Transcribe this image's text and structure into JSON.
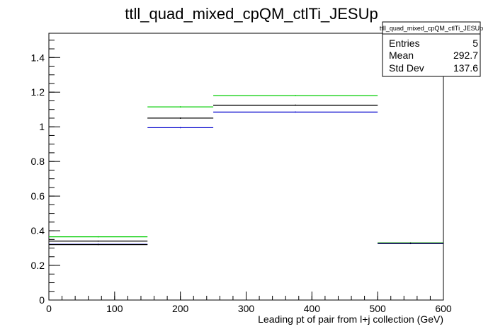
{
  "chart_data": {
    "type": "step-histogram",
    "title": "ttll_quad_mixed_cpQM_ctlTi_JESUp",
    "xlabel": "Leading pt of pair from l+j collection (GeV)",
    "ylabel": "",
    "xlim": [
      0,
      600
    ],
    "ylim": [
      0,
      1.54
    ],
    "x_ticks": [
      0,
      100,
      200,
      300,
      400,
      500,
      600
    ],
    "y_ticks": [
      0,
      0.2,
      0.4,
      0.6,
      0.8,
      1,
      1.2,
      1.4
    ],
    "x_tick_labels": [
      "0",
      "100",
      "200",
      "300",
      "400",
      "500",
      "600"
    ],
    "y_tick_labels": [
      "0",
      "0.2",
      "0.4",
      "0.6",
      "0.8",
      "1",
      "1.2",
      "1.4"
    ],
    "bins": [
      [
        0,
        150
      ],
      [
        150,
        250
      ],
      [
        250,
        500
      ],
      [
        500,
        600
      ]
    ],
    "series": [
      {
        "color": "#00cc00",
        "values": [
          0.365,
          1.115,
          1.18,
          0.33
        ]
      },
      {
        "color": "#000000",
        "values": [
          0.34,
          1.05,
          1.125,
          0.328
        ]
      },
      {
        "color": "#0000cc",
        "values": [
          0.322,
          0.995,
          1.085,
          0.326
        ]
      },
      {
        "color": "#000000",
        "values": [
          0.32,
          1.05,
          1.125,
          0.328
        ]
      }
    ],
    "stats_box": {
      "title": "ttll_quad_mixed_cpQM_ctlTi_JESUp",
      "rows": [
        {
          "label": "Entries",
          "value": "5"
        },
        {
          "label": "Mean",
          "value": "292.7"
        },
        {
          "label": "Std Dev",
          "value": "137.6"
        }
      ]
    },
    "grid": false,
    "legend": "none"
  }
}
